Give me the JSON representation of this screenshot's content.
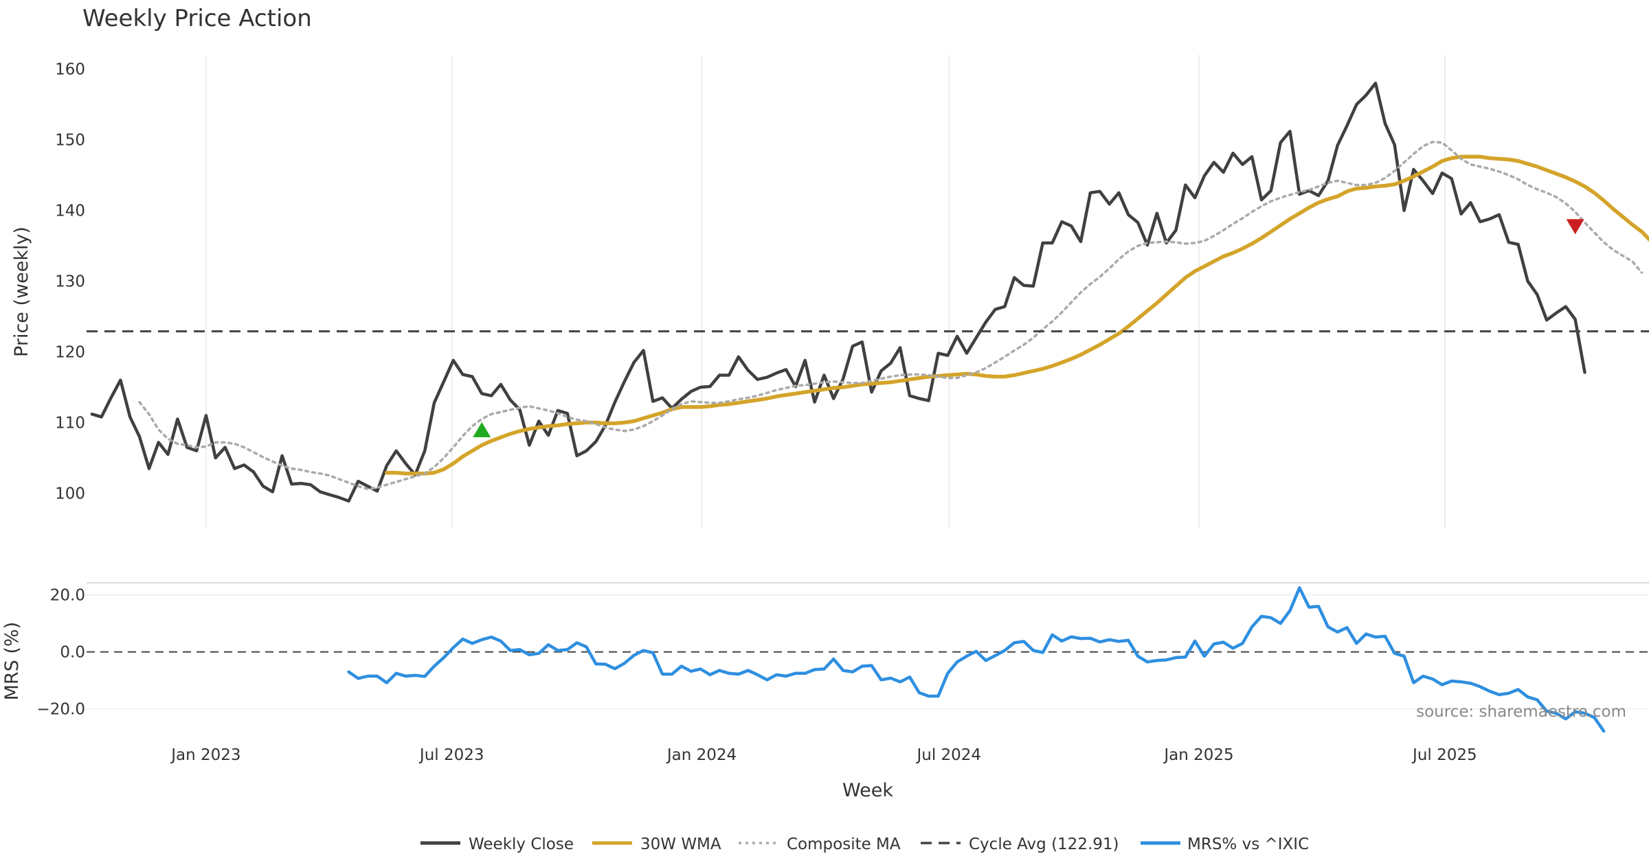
{
  "chart_data": {
    "type": "line",
    "title": "Weekly Price Action",
    "xlabel": "Week",
    "source": "source: sharemaestro.com",
    "x_start": "2022-10-02",
    "x_end": "2025-11-02",
    "x_ticks": [
      {
        "date": "2023-01-01",
        "label": "Jan 2023"
      },
      {
        "date": "2023-07-01",
        "label": "Jul 2023"
      },
      {
        "date": "2024-01-01",
        "label": "Jan 2024"
      },
      {
        "date": "2024-07-01",
        "label": "Jul 2024"
      },
      {
        "date": "2025-01-01",
        "label": "Jan 2025"
      },
      {
        "date": "2025-07-01",
        "label": "Jul 2025"
      }
    ],
    "price_panel": {
      "ylabel": "Price (weekly)",
      "ylim": [
        95,
        162
      ],
      "yticks": [
        100,
        110,
        120,
        130,
        140,
        150,
        160
      ],
      "grid": "vertical"
    },
    "mrs_panel": {
      "ylabel": "MRS (%)",
      "ylim": [
        -29,
        24
      ],
      "yticks": [
        20,
        0,
        -20
      ],
      "ytick_labels": [
        "20.0",
        "0.0",
        "−20.0"
      ],
      "zero_line": true
    },
    "series": [
      {
        "name": "Weekly Close",
        "color": "#404040",
        "style": "solid",
        "start_date": "2022-10-09",
        "values": [
          111.2,
          110.8,
          113.5,
          116.0,
          110.8,
          108.0,
          103.5,
          107.2,
          105.5,
          110.5,
          106.5,
          106.0,
          111.0,
          105.0,
          106.5,
          103.5,
          104.0,
          103.0,
          101.0,
          100.2,
          105.3,
          101.3,
          101.4,
          101.2,
          100.2,
          99.8,
          99.4,
          98.9,
          101.7,
          101.0,
          100.3,
          103.9,
          106.0,
          104.2,
          102.6,
          106.0,
          112.8,
          115.8,
          118.8,
          116.8,
          116.5,
          114.1,
          113.8,
          115.4,
          113.2,
          111.8,
          106.8,
          110.2,
          108.2,
          111.7,
          111.3,
          105.3,
          106.0,
          107.3,
          109.6,
          112.9,
          115.8,
          118.5,
          120.2,
          113.0,
          113.5,
          112.0,
          113.3,
          114.4,
          115.0,
          115.1,
          116.7,
          116.7,
          119.3,
          117.4,
          116.1,
          116.4,
          117.0,
          117.5,
          115.1,
          118.8,
          112.9,
          116.7,
          113.4,
          116.2,
          120.8,
          121.4,
          114.3,
          117.3,
          118.4,
          120.6,
          113.8,
          113.4,
          113.1,
          119.8,
          119.5,
          122.2,
          119.8,
          122.0,
          124.2,
          126.0,
          126.4,
          130.5,
          129.4,
          129.3,
          135.4,
          135.4,
          138.4,
          137.8,
          135.6,
          142.5,
          142.7,
          140.9,
          142.5,
          139.4,
          138.3,
          135.1,
          139.6,
          135.4,
          137.2,
          143.6,
          141.8,
          144.9,
          146.8,
          145.4,
          148.1,
          146.5,
          147.6,
          141.5,
          142.8,
          149.6,
          151.2,
          142.3,
          142.8,
          142.1,
          144.2,
          149.2,
          152.0,
          155.0,
          156.3,
          158.0,
          152.3,
          149.3,
          140.0,
          145.8,
          144.2,
          142.4,
          145.3,
          144.5,
          139.5,
          141.1,
          138.4,
          138.8,
          139.4,
          135.5,
          135.2,
          130.0,
          128.1,
          124.5,
          125.5,
          126.4,
          124.6,
          117.1
        ]
      },
      {
        "name": "30W WMA",
        "color": "#d4a42a",
        "style": "solid",
        "start_date": "2023-05-14",
        "values": [
          102.9,
          102.9,
          102.8,
          102.8,
          102.8,
          102.9,
          103.4,
          104.2,
          105.2,
          106.0,
          106.8,
          107.4,
          107.9,
          108.4,
          108.8,
          109.1,
          109.3,
          109.5,
          109.6,
          109.8,
          109.9,
          110.0,
          110.0,
          109.9,
          109.9,
          110.0,
          110.2,
          110.6,
          111.0,
          111.4,
          111.9,
          112.2,
          112.2,
          112.2,
          112.3,
          112.5,
          112.6,
          112.8,
          113.0,
          113.2,
          113.4,
          113.7,
          113.9,
          114.1,
          114.3,
          114.5,
          114.7,
          114.9,
          115.0,
          115.2,
          115.4,
          115.5,
          115.6,
          115.7,
          115.9,
          116.1,
          116.3,
          116.5,
          116.6,
          116.7,
          116.8,
          116.9,
          116.8,
          116.6,
          116.5,
          116.5,
          116.7,
          117.0,
          117.3,
          117.6,
          118.0,
          118.5,
          119.0,
          119.6,
          120.3,
          121.0,
          121.8,
          122.6,
          123.6,
          124.7,
          125.8,
          126.9,
          128.1,
          129.3,
          130.5,
          131.4,
          132.1,
          132.8,
          133.5,
          134.0,
          134.6,
          135.3,
          136.1,
          137.0,
          137.9,
          138.8,
          139.6,
          140.4,
          141.1,
          141.6,
          142.0,
          142.7,
          143.1,
          143.2,
          143.4,
          143.5,
          143.7,
          144.2,
          144.8,
          145.5,
          146.2,
          147.0,
          147.4,
          147.6,
          147.6,
          147.6,
          147.4,
          147.3,
          147.2,
          147.0,
          146.6,
          146.2,
          145.7,
          145.2,
          144.7,
          144.1,
          143.4,
          142.5,
          141.4,
          140.2,
          139.1,
          138.0,
          137.0,
          135.6
        ]
      },
      {
        "name": "Composite MA",
        "color": "#aaaaaa",
        "style": "dotted",
        "start_date": "2022-11-13",
        "values": [
          112.9,
          111.2,
          109.0,
          107.7,
          107.0,
          106.8,
          106.5,
          106.6,
          107.2,
          107.2,
          107.0,
          106.5,
          105.8,
          105.1,
          104.5,
          103.9,
          103.5,
          103.3,
          103.0,
          102.8,
          102.5,
          102.0,
          101.5,
          101.0,
          100.6,
          100.8,
          101.2,
          101.6,
          102.0,
          102.4,
          102.8,
          103.7,
          105.0,
          106.5,
          108.1,
          109.5,
          110.5,
          111.2,
          111.5,
          111.8,
          112.1,
          112.3,
          112.0,
          111.7,
          111.3,
          110.8,
          110.4,
          110.2,
          109.8,
          109.3,
          109.0,
          108.8,
          109.0,
          109.5,
          110.2,
          111.0,
          111.9,
          112.6,
          113.0,
          112.9,
          112.8,
          112.8,
          113.0,
          113.3,
          113.5,
          113.8,
          114.2,
          114.6,
          114.9,
          115.2,
          115.3,
          115.5,
          115.7,
          115.8,
          115.7,
          115.6,
          115.6,
          115.9,
          116.2,
          116.5,
          116.7,
          116.8,
          116.8,
          116.7,
          116.5,
          116.3,
          116.3,
          116.7,
          117.1,
          117.7,
          118.5,
          119.3,
          120.2,
          121.0,
          122.0,
          123.2,
          124.3,
          125.6,
          127.0,
          128.4,
          129.6,
          130.6,
          131.8,
          133.1,
          134.2,
          135.0,
          135.4,
          135.5,
          135.6,
          135.5,
          135.3,
          135.4,
          135.7,
          136.4,
          137.2,
          138.1,
          138.9,
          139.8,
          140.6,
          141.3,
          141.8,
          142.2,
          142.6,
          142.9,
          143.4,
          143.9,
          144.2,
          143.9,
          143.6,
          143.6,
          143.9,
          144.6,
          145.6,
          146.8,
          148.0,
          149.1,
          149.7,
          149.6,
          148.5,
          147.3,
          146.5,
          146.2,
          145.9,
          145.5,
          145.0,
          144.4,
          143.6,
          143.0,
          142.5,
          141.9,
          141.0,
          139.8,
          138.3,
          136.9,
          135.5,
          134.4,
          133.6,
          132.8,
          131.2
        ]
      },
      {
        "name": "Cycle Avg (122.91)",
        "color": "#444444",
        "style": "dashed",
        "value": 122.91
      },
      {
        "name": "MRS% vs ^IXIC",
        "color": "#2e8fe0",
        "style": "solid",
        "panel": "mrs",
        "start_date": "2023-04-16",
        "values": [
          -7.0,
          -9.3,
          -8.5,
          -8.5,
          -10.8,
          -7.5,
          -8.5,
          -8.2,
          -8.6,
          -5.0,
          -2.0,
          1.5,
          4.5,
          3.0,
          4.3,
          5.2,
          3.8,
          0.5,
          0.8,
          -1.0,
          -0.5,
          2.5,
          0.5,
          0.8,
          3.2,
          1.8,
          -4.2,
          -4.3,
          -5.9,
          -4.0,
          -1.2,
          0.5,
          -0.3,
          -7.8,
          -7.8,
          -5.0,
          -6.8,
          -6.0,
          -8.0,
          -6.5,
          -7.5,
          -7.8,
          -6.5,
          -8.0,
          -9.8,
          -8.0,
          -8.5,
          -7.5,
          -7.5,
          -6.2,
          -6.0,
          -2.5,
          -6.5,
          -7.0,
          -5.0,
          -4.8,
          -9.8,
          -9.2,
          -10.5,
          -8.8,
          -14.3,
          -15.5,
          -15.5,
          -7.5,
          -3.5,
          -1.5,
          0.2,
          -3.0,
          -1.3,
          0.5,
          3.2,
          3.7,
          0.5,
          -0.2,
          6.0,
          3.8,
          5.3,
          4.7,
          4.8,
          3.5,
          4.3,
          3.7,
          4.1,
          -1.5,
          -3.5,
          -3.0,
          -2.8,
          -2.0,
          -1.8,
          3.8,
          -1.5,
          2.8,
          3.4,
          1.3,
          3.0,
          8.8,
          12.5,
          12.0,
          10.0,
          14.5,
          22.5,
          15.7,
          16.0,
          8.8,
          7.0,
          8.5,
          3.0,
          6.3,
          5.2,
          5.5,
          -0.5,
          -1.5,
          -10.8,
          -8.5,
          -9.5,
          -11.5,
          -10.2,
          -10.5,
          -11.0,
          -12.2,
          -13.8,
          -15.0,
          -14.5,
          -13.2,
          -15.8,
          -16.8,
          -20.8,
          -21.5,
          -23.5,
          -21.0,
          -21.5,
          -23.0,
          -27.8
        ]
      }
    ],
    "markers": [
      {
        "type": "triangle-up",
        "date": "2023-07-23",
        "value": 109.0,
        "color": "#1faa1f"
      },
      {
        "type": "triangle-down",
        "date": "2025-10-05",
        "value": 137.7,
        "color": "#cc1e1e"
      }
    ],
    "legend": {
      "position": "bottom-center"
    }
  }
}
